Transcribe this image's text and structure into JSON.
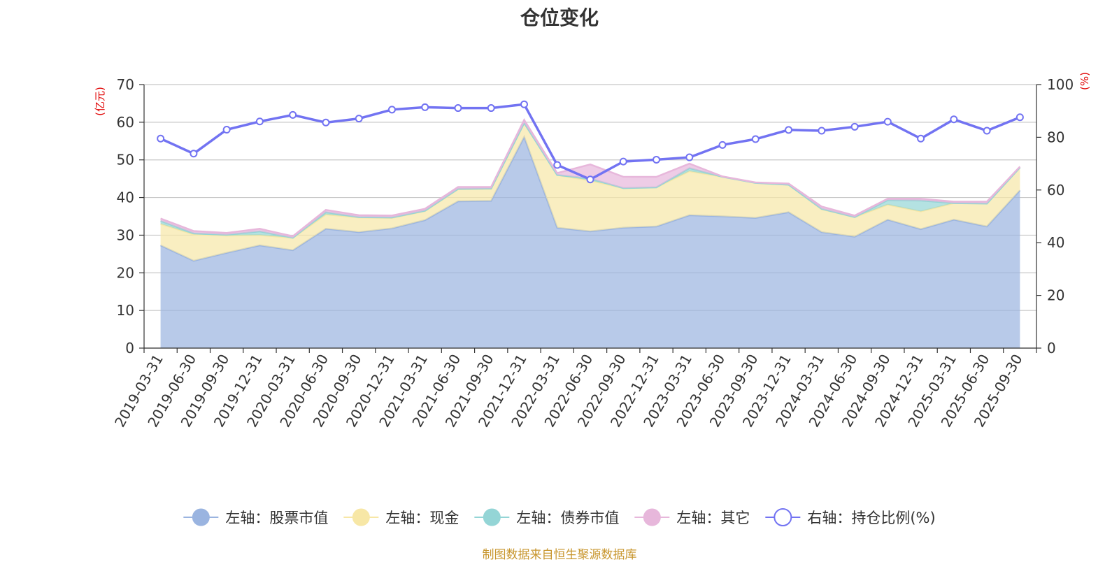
{
  "chart_data": {
    "type": "area",
    "title": "仓位变化",
    "left_unit": "(亿元)",
    "right_unit": "(%)",
    "left_axis": {
      "min": 0,
      "max": 70,
      "ticks": [
        0,
        10,
        20,
        30,
        40,
        50,
        60,
        70
      ]
    },
    "right_axis": {
      "min": 0,
      "max": 100,
      "ticks": [
        0,
        20,
        40,
        60,
        80,
        100
      ]
    },
    "grid": true,
    "legend_position": "bottom",
    "categories": [
      "2019-03-31",
      "2019-06-30",
      "2019-09-30",
      "2019-12-31",
      "2020-03-31",
      "2020-06-30",
      "2020-09-30",
      "2020-12-31",
      "2021-03-31",
      "2021-06-30",
      "2021-09-30",
      "2021-12-31",
      "2022-03-31",
      "2022-06-30",
      "2022-09-30",
      "2022-12-31",
      "2023-03-31",
      "2023-06-30",
      "2023-09-30",
      "2023-12-31",
      "2024-03-31",
      "2024-06-30",
      "2024-09-30",
      "2024-12-31",
      "2025-03-31",
      "2025-06-30",
      "2025-09-30"
    ],
    "stacked_series": [
      {
        "name": "左轴：股票市值",
        "color": "#9ab4e0",
        "values": [
          27.3,
          23.2,
          25.3,
          27.3,
          26.0,
          31.7,
          30.8,
          31.8,
          34.0,
          39.0,
          39.1,
          56.1,
          32.0,
          31.0,
          32.0,
          32.3,
          35.3,
          35.0,
          34.6,
          36.1,
          30.8,
          29.6,
          34.1,
          31.6,
          34.1,
          32.3,
          41.9
        ]
      },
      {
        "name": "左轴：现金",
        "color": "#f7e7a6",
        "values": [
          5.7,
          7.0,
          4.6,
          2.7,
          3.3,
          3.8,
          3.9,
          2.8,
          2.4,
          3.2,
          3.2,
          3.7,
          14.0,
          13.5,
          10.5,
          10.4,
          11.7,
          10.5,
          9.3,
          7.3,
          6.1,
          5.2,
          4.0,
          4.7,
          4.4,
          6.1,
          6.1
        ]
      },
      {
        "name": "左轴：债券市值",
        "color": "#94d5d6",
        "values": [
          0.8,
          0.3,
          0.2,
          1.0,
          0.0,
          0.6,
          0.1,
          0.1,
          0.1,
          0.1,
          0.1,
          0.0,
          0.0,
          0.5,
          0.0,
          0.0,
          0.8,
          0.0,
          0.0,
          0.0,
          0.1,
          0.0,
          1.2,
          2.9,
          0.0,
          0.0,
          0.0
        ]
      },
      {
        "name": "左轴：其它",
        "color": "#e7b7db",
        "values": [
          0.6,
          0.6,
          0.5,
          0.7,
          0.4,
          0.6,
          0.5,
          0.5,
          0.5,
          0.5,
          0.4,
          0.8,
          0.5,
          3.8,
          3.0,
          2.8,
          1.2,
          0.1,
          0.1,
          0.3,
          0.6,
          0.4,
          0.4,
          0.5,
          0.4,
          0.5,
          0.2
        ]
      }
    ],
    "line_series": {
      "name": "右轴：持仓比例(%)",
      "color": "#7273f2",
      "axis": "right",
      "values": [
        79.5,
        73.8,
        82.9,
        86.0,
        88.5,
        85.6,
        87.1,
        90.5,
        91.4,
        91.1,
        91.1,
        92.5,
        69.5,
        64.0,
        70.8,
        71.5,
        72.4,
        77.1,
        79.3,
        82.8,
        82.5,
        84.0,
        85.9,
        79.5,
        86.8,
        82.5,
        87.6
      ]
    },
    "source_note": "制图数据来自恒生聚源数据库"
  }
}
